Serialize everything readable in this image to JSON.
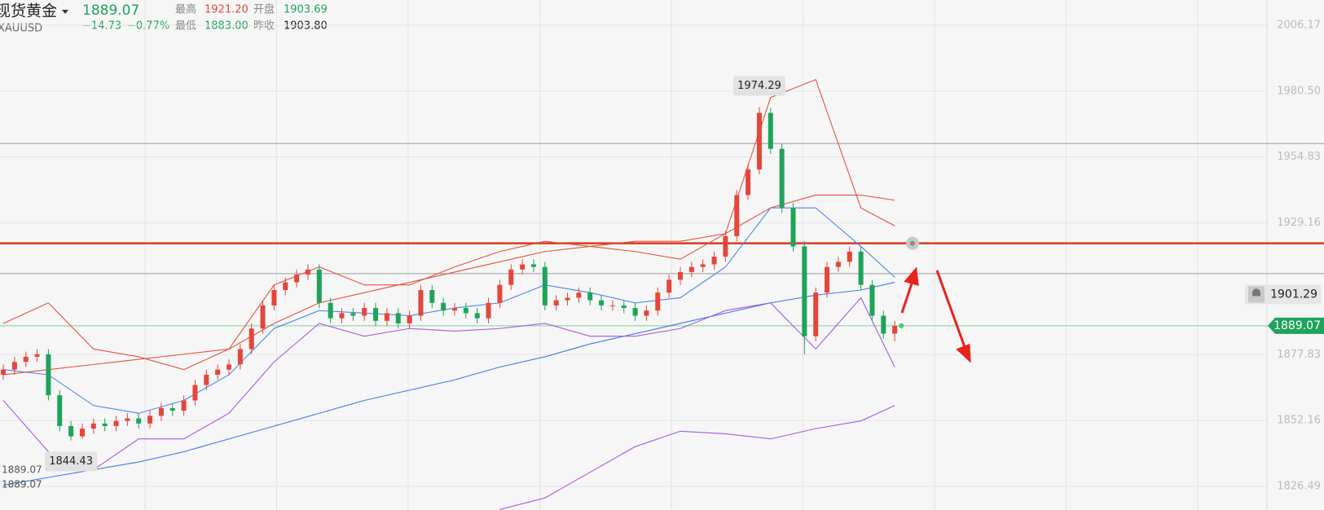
{
  "header": {
    "name": "现货黄金",
    "symbol": "XAUUSD",
    "price": "1889.07",
    "change": "−14.73",
    "change_pct": "−0.77%",
    "high_label": "最高",
    "high": "1921.20",
    "open_label": "开盘",
    "open": "1903.69",
    "low_label": "最低",
    "low": "1883.00",
    "prev_label": "昨收",
    "prev": "1903.80"
  },
  "chart_data": {
    "type": "candlestick",
    "ylim": [
      1817.3,
      2016.0
    ],
    "yticks": [
      {
        "value": 2006.17,
        "label": "2006.17"
      },
      {
        "value": 1980.5,
        "label": "1980.50"
      },
      {
        "value": 1954.83,
        "label": "1954.83"
      },
      {
        "value": 1929.16,
        "label": "1929.16"
      },
      {
        "value": 1877.83,
        "label": "1877.83"
      },
      {
        "value": 1852.16,
        "label": "1852.16"
      },
      {
        "value": 1826.49,
        "label": "1826.49"
      }
    ],
    "grid": true,
    "up_color": "#e5463b",
    "down_color": "#1fa35a",
    "ohlc": {
      "open": [
        1870,
        1872,
        1875,
        1877,
        1878,
        1862,
        1850,
        1846,
        1849,
        1851,
        1850,
        1852,
        1853,
        1851,
        1854,
        1857,
        1856,
        1860,
        1866,
        1870,
        1872,
        1874,
        1880,
        1888,
        1897,
        1903,
        1906,
        1909,
        1911,
        1898,
        1892,
        1894,
        1893,
        1896,
        1891,
        1894,
        1890,
        1893,
        1903,
        1898,
        1895,
        1896,
        1894,
        1892,
        1898,
        1905,
        1911,
        1913,
        1912,
        1897,
        1899,
        1900,
        1902,
        1899,
        1897,
        1897,
        1896,
        1893,
        1895,
        1902,
        1907,
        1910,
        1912,
        1913,
        1916,
        1924,
        1940,
        1950,
        1972,
        1958,
        1935,
        1920,
        1885,
        1902,
        1912,
        1914,
        1918,
        1905,
        1893,
        1886
      ],
      "high": [
        1874,
        1877,
        1879,
        1880,
        1880,
        1864,
        1852,
        1851,
        1853,
        1853,
        1854,
        1855,
        1855,
        1856,
        1859,
        1859,
        1862,
        1868,
        1872,
        1874,
        1876,
        1882,
        1890,
        1899,
        1905,
        1908,
        1911,
        1913,
        1913,
        1900,
        1896,
        1896,
        1898,
        1898,
        1896,
        1896,
        1895,
        1905,
        1905,
        1900,
        1898,
        1898,
        1896,
        1900,
        1907,
        1913,
        1915,
        1915,
        1914,
        1901,
        1902,
        1904,
        1904,
        1901,
        1899,
        1899,
        1898,
        1897,
        1904,
        1909,
        1912,
        1914,
        1915,
        1918,
        1926,
        1942,
        1952,
        1974.29,
        1974,
        1960,
        1937,
        1922,
        1904,
        1914,
        1916,
        1920,
        1920,
        1907,
        1895,
        1891
      ],
      "low": [
        1868,
        1870,
        1873,
        1875,
        1860,
        1848,
        1844.43,
        1845,
        1847,
        1848,
        1848,
        1850,
        1849,
        1849,
        1852,
        1854,
        1854,
        1858,
        1864,
        1868,
        1870,
        1872,
        1878,
        1886,
        1895,
        1901,
        1904,
        1907,
        1896,
        1890,
        1890,
        1891,
        1891,
        1889,
        1889,
        1888,
        1888,
        1891,
        1896,
        1893,
        1893,
        1892,
        1890,
        1890,
        1896,
        1903,
        1909,
        1910,
        1895,
        1895,
        1897,
        1898,
        1897,
        1895,
        1895,
        1894,
        1891,
        1891,
        1893,
        1900,
        1905,
        1908,
        1910,
        1911,
        1914,
        1922,
        1938,
        1948,
        1956,
        1933,
        1918,
        1878,
        1883,
        1900,
        1910,
        1912,
        1903,
        1891,
        1884,
        1883
      ],
      "close": [
        1872,
        1875,
        1877,
        1878,
        1862,
        1850,
        1846,
        1849,
        1851,
        1850,
        1852,
        1853,
        1851,
        1854,
        1857,
        1856,
        1860,
        1866,
        1870,
        1872,
        1874,
        1880,
        1888,
        1897,
        1903,
        1906,
        1909,
        1911,
        1898,
        1892,
        1894,
        1893,
        1896,
        1891,
        1894,
        1890,
        1893,
        1903,
        1898,
        1895,
        1896,
        1894,
        1892,
        1898,
        1905,
        1911,
        1913,
        1912,
        1897,
        1899,
        1900,
        1902,
        1899,
        1897,
        1897,
        1896,
        1893,
        1895,
        1902,
        1907,
        1910,
        1912,
        1913,
        1916,
        1924,
        1940,
        1950,
        1972,
        1958,
        1935,
        1920,
        1885,
        1902,
        1912,
        1914,
        1918,
        1905,
        1893,
        1886,
        1889.07
      ]
    },
    "line_x": [
      0,
      4,
      8,
      12,
      16,
      20,
      24,
      28,
      32,
      36,
      40,
      44,
      48,
      52,
      56,
      60,
      64,
      68,
      72,
      76,
      79
    ],
    "lines": [
      {
        "color": "#3d7be0",
        "values": [
          1827,
          1830,
          1833,
          1836,
          1840,
          1845,
          1850,
          1855,
          1860,
          1864,
          1868,
          1873,
          1877,
          1882,
          1886,
          1890,
          1894,
          1898,
          1901,
          1903,
          1906
        ]
      },
      {
        "color": "#4a86e8",
        "values": [
          1872,
          1870,
          1858,
          1855,
          1860,
          1870,
          1888,
          1895,
          1894,
          1893,
          1896,
          1898,
          1905,
          1902,
          1898,
          1900,
          1912,
          1935,
          1935,
          1920,
          1908
        ]
      },
      {
        "color": "#e0533f",
        "values": [
          1890,
          1898,
          1880,
          1877,
          1872,
          1880,
          1905,
          1912,
          1905,
          1905,
          1912,
          1918,
          1922,
          1920,
          1918,
          1915,
          1925,
          1978,
          1985,
          1935,
          1928
        ]
      },
      {
        "color": "#e0533f",
        "values": [
          1870,
          1872,
          1874,
          1876,
          1878,
          1880,
          1890,
          1898,
          1902,
          1906,
          1910,
          1914,
          1918,
          1920,
          1922,
          1922,
          1925,
          1935,
          1940,
          1940,
          1938
        ]
      },
      {
        "color": "#a35ae0",
        "values": [
          1860,
          1840,
          1833,
          1845,
          1845,
          1855,
          1875,
          1890,
          1885,
          1888,
          1887,
          1888,
          1890,
          1885,
          1885,
          1888,
          1895,
          1898,
          1880,
          1900,
          1873
        ]
      },
      {
        "color": "#a35ae0",
        "values": [
          null,
          null,
          null,
          null,
          null,
          null,
          null,
          null,
          null,
          null,
          null,
          1817.5,
          1822,
          1832,
          1842,
          1848,
          1847,
          1845,
          1849,
          1852,
          1858
        ]
      }
    ],
    "hlines": [
      {
        "value": 1921.2,
        "color": "#d9381e",
        "width": 2.5
      },
      {
        "value": 1960.1,
        "color": "#9a9a9a",
        "width": 1
      },
      {
        "value": 1909.4,
        "color": "#9a9a9a",
        "width": 1
      },
      {
        "value": 1889.07,
        "color": "#7fcf9a",
        "width": 1
      }
    ],
    "max_label": 1974.29,
    "min_label": 1844.43,
    "alert_price": 1901.29,
    "last_price": 1889.07,
    "left_labels": [
      1889.07,
      1889.07
    ]
  }
}
